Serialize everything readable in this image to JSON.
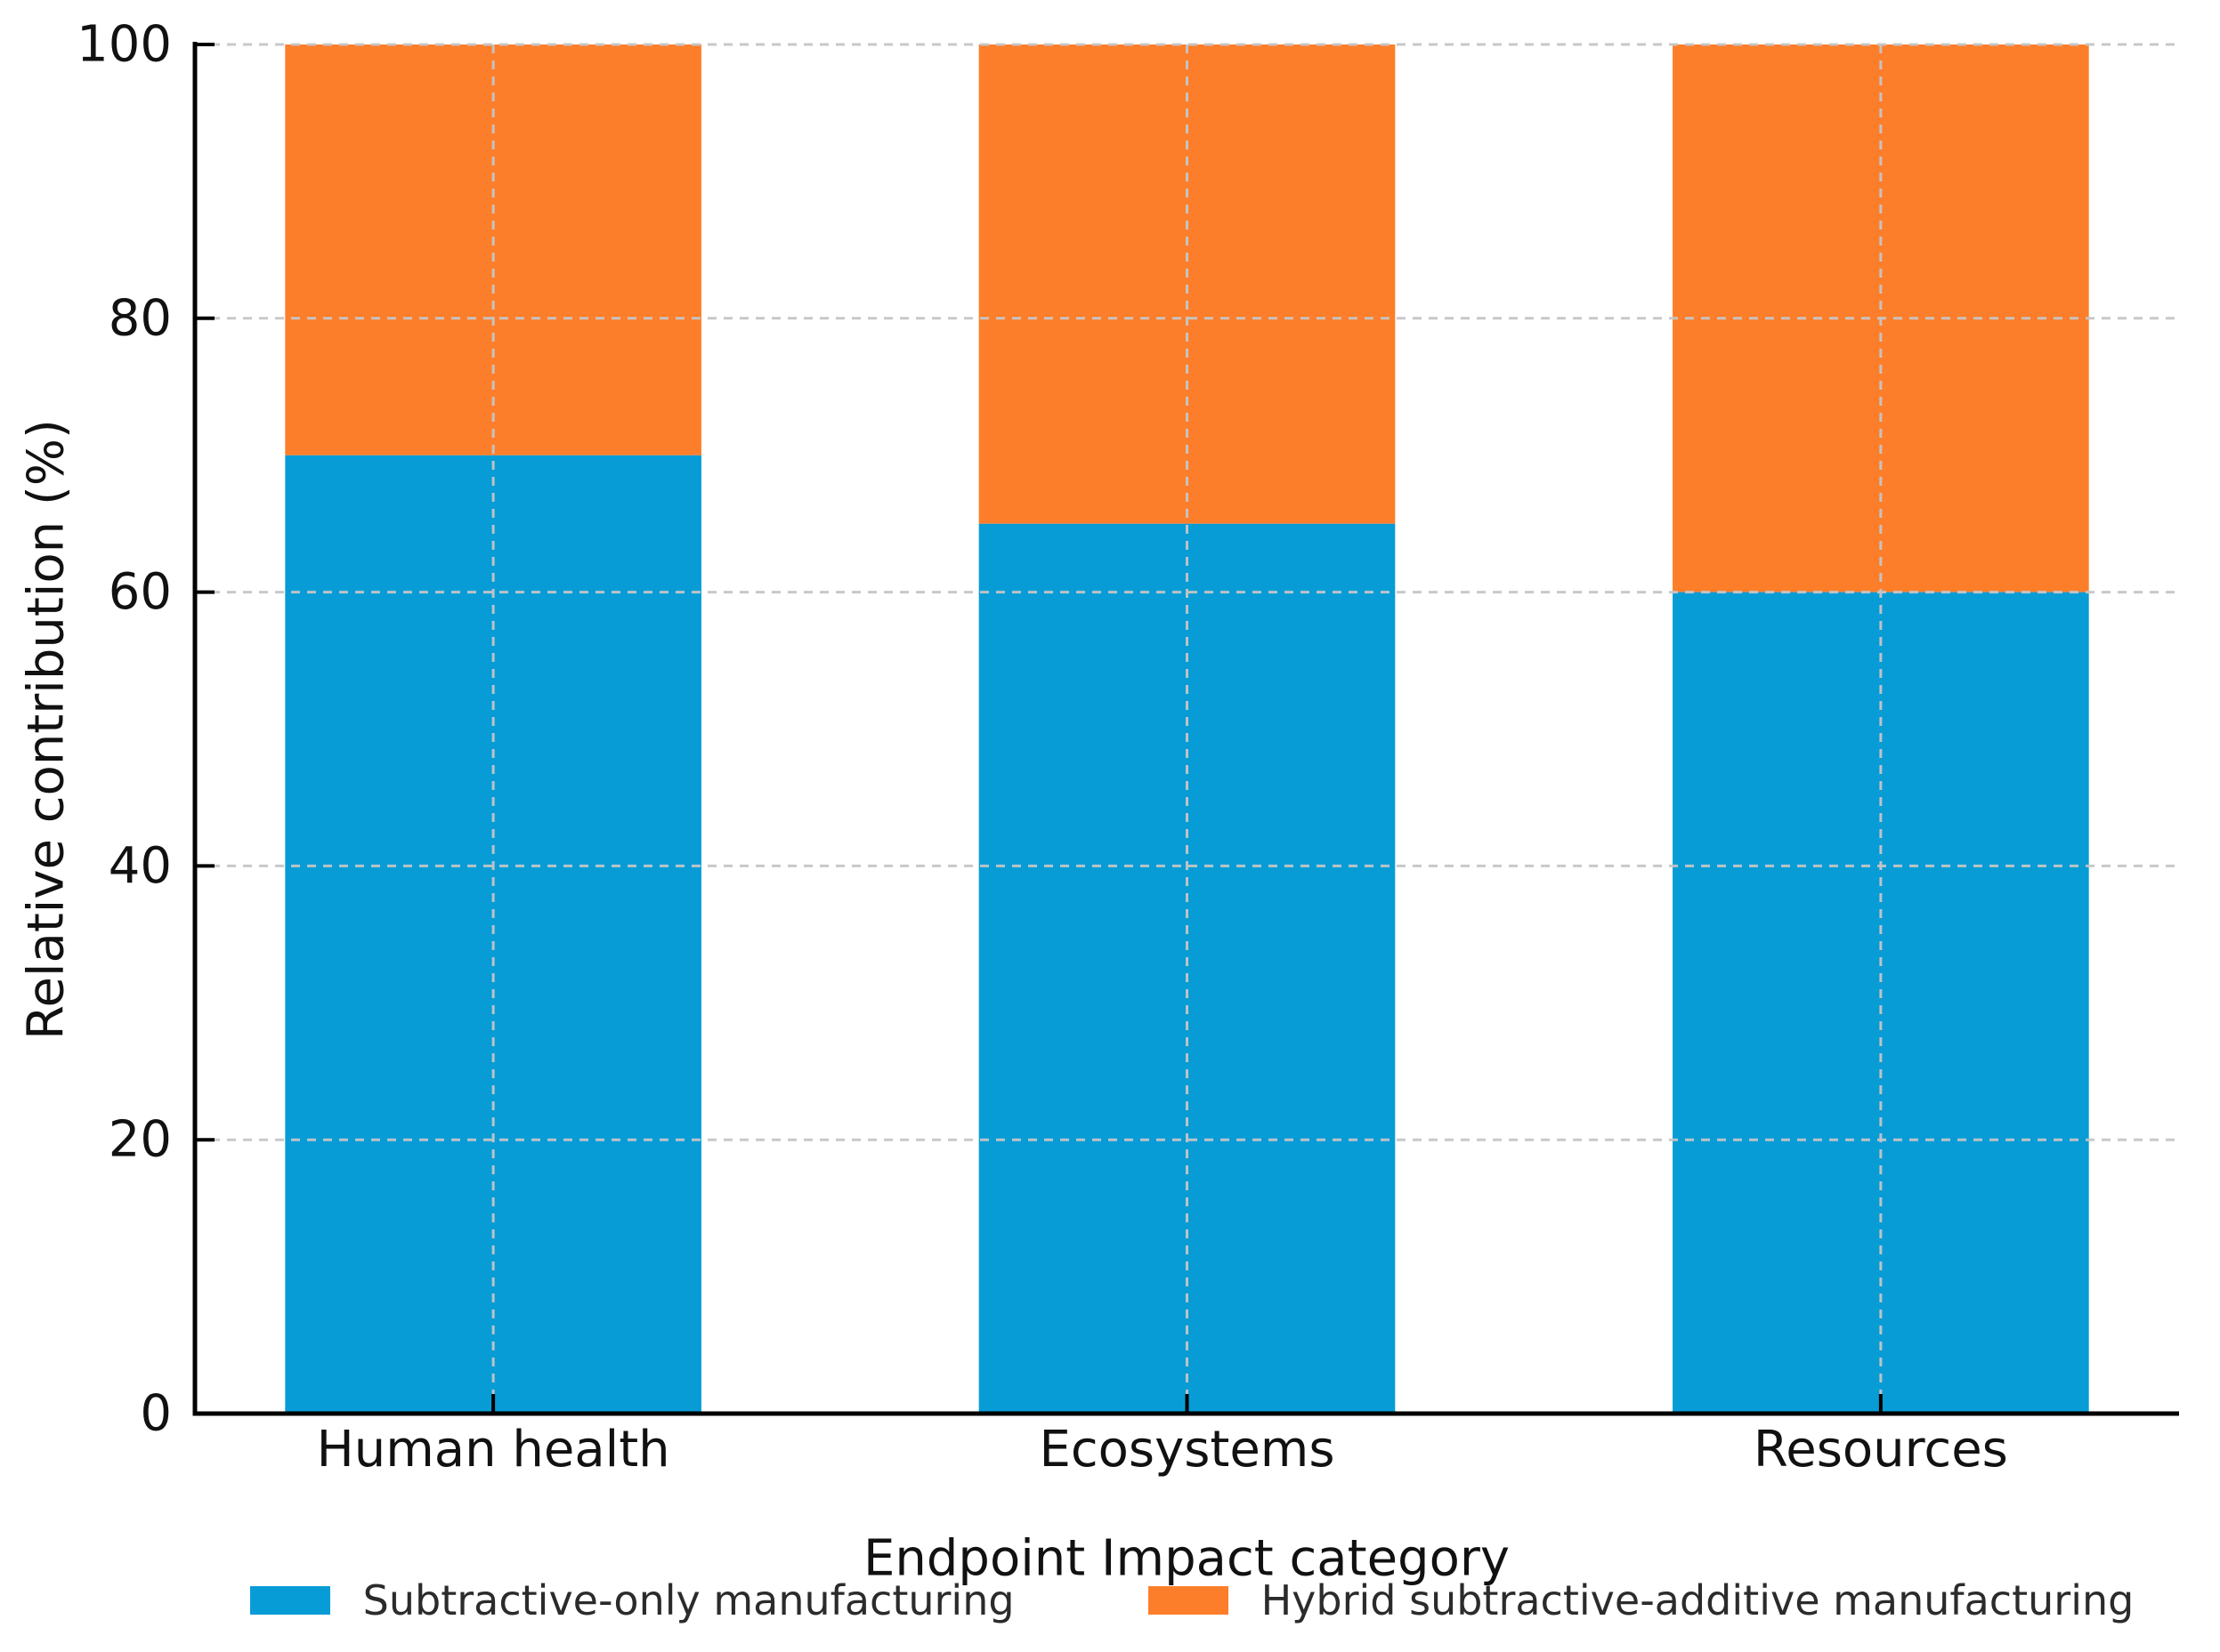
{
  "chart_data": {
    "type": "bar",
    "stacked": true,
    "title": "",
    "xlabel": "Endpoint Impact category",
    "ylabel": "Relative contribution (%)",
    "categories": [
      "Human health",
      "Ecosystems",
      "Resources"
    ],
    "series": [
      {
        "name": "Subtractive-only manufacturing",
        "color": "#079cd6",
        "values": [
          70,
          65,
          60
        ]
      },
      {
        "name": "Hybrid subtractive-additive manufacturing",
        "color": "#fd7e2a",
        "values": [
          30,
          35,
          40
        ]
      }
    ],
    "yticks": [
      0,
      20,
      40,
      60,
      80,
      100
    ],
    "ylim": [
      0,
      100
    ],
    "xlim": [
      -0.43,
      2.43
    ],
    "bar_width": 0.6,
    "grid": "both-dashed",
    "grid_color": "#c6c6c6",
    "axis_color": "#000000",
    "legend_position": "bottom-center"
  }
}
